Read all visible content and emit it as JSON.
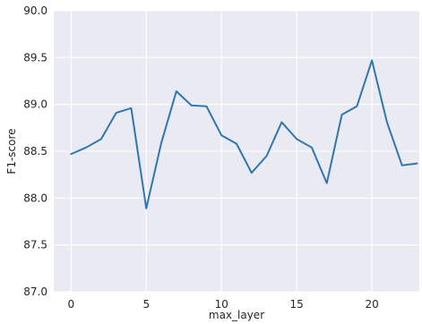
{
  "chart_data": {
    "type": "line",
    "title": "",
    "xlabel": "max_layer",
    "ylabel": "F1-score",
    "xlim": [
      -1.15,
      23.15
    ],
    "ylim": [
      87.0,
      90.0
    ],
    "xticks": [
      0,
      5,
      10,
      15,
      20
    ],
    "yticks": [
      87.0,
      87.5,
      88.0,
      88.5,
      89.0,
      89.5,
      90.0
    ],
    "xtick_labels": [
      "0",
      "5",
      "10",
      "15",
      "20"
    ],
    "ytick_labels": [
      "87.0",
      "87.5",
      "88.0",
      "88.5",
      "89.0",
      "89.5",
      "90.0"
    ],
    "grid": true,
    "series": [
      {
        "color": "#3076af",
        "x": [
          0,
          1,
          2,
          3,
          4,
          5,
          6,
          7,
          8,
          9,
          10,
          11,
          12,
          13,
          14,
          15,
          16,
          17,
          18,
          19,
          20,
          21,
          22,
          23
        ],
        "values": [
          88.47,
          88.54,
          88.63,
          88.91,
          88.96,
          87.89,
          88.59,
          89.14,
          88.99,
          88.98,
          88.67,
          88.58,
          88.27,
          88.45,
          88.81,
          88.63,
          88.54,
          88.16,
          88.89,
          88.98,
          89.47,
          88.81,
          88.35,
          88.37
        ]
      }
    ],
    "colors": {
      "plot_background": "#eaeaf2",
      "grid": "#ffffff",
      "text": "#262626"
    }
  }
}
